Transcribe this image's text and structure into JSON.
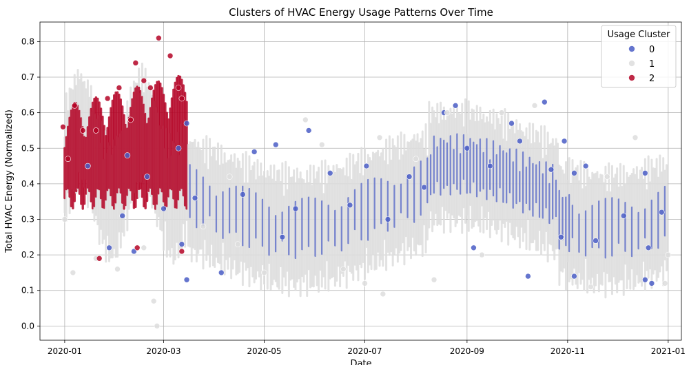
{
  "chart_data": {
    "type": "scatter",
    "title": "Clusters of HVAC Energy Usage Patterns Over Time",
    "xlabel": "Date",
    "ylabel": "Total HVAC Energy (Normalized)",
    "x_ticks": [
      "2020-01",
      "2020-03",
      "2020-05",
      "2020-07",
      "2020-09",
      "2020-11",
      "2021-01"
    ],
    "x_tick_dates": [
      "2020-01-01",
      "2020-03-01",
      "2020-05-01",
      "2020-07-01",
      "2020-09-01",
      "2020-11-01",
      "2021-01-01"
    ],
    "xlim": [
      "2019-12-17",
      "2021-01-09"
    ],
    "y_ticks": [
      "0.0",
      "0.1",
      "0.2",
      "0.3",
      "0.4",
      "0.5",
      "0.6",
      "0.7",
      "0.8"
    ],
    "ylim": [
      -0.04,
      0.855
    ],
    "grid": true,
    "legend": {
      "title": "Usage Cluster",
      "position": "top-right"
    },
    "series": [
      {
        "name": "0",
        "color": "#4a5dc6",
        "points": [
          [
            "2020-01-15",
            0.45
          ],
          [
            "2020-01-28",
            0.22
          ],
          [
            "2020-02-05",
            0.31
          ],
          [
            "2020-02-08",
            0.48
          ],
          [
            "2020-02-12",
            0.21
          ],
          [
            "2020-02-20",
            0.42
          ],
          [
            "2020-03-01",
            0.33
          ],
          [
            "2020-03-10",
            0.5
          ],
          [
            "2020-03-12",
            0.23
          ],
          [
            "2020-03-15",
            0.57
          ],
          [
            "2020-03-15",
            0.13
          ],
          [
            "2020-03-20",
            0.36
          ],
          [
            "2020-04-05",
            0.15
          ],
          [
            "2020-04-18",
            0.37
          ],
          [
            "2020-04-25",
            0.49
          ],
          [
            "2020-05-08",
            0.51
          ],
          [
            "2020-05-12",
            0.25
          ],
          [
            "2020-05-20",
            0.33
          ],
          [
            "2020-05-28",
            0.55
          ],
          [
            "2020-06-10",
            0.43
          ],
          [
            "2020-06-22",
            0.34
          ],
          [
            "2020-07-02",
            0.45
          ],
          [
            "2020-07-15",
            0.3
          ],
          [
            "2020-07-28",
            0.42
          ],
          [
            "2020-08-06",
            0.39
          ],
          [
            "2020-08-18",
            0.6
          ],
          [
            "2020-08-25",
            0.62
          ],
          [
            "2020-09-01",
            0.5
          ],
          [
            "2020-09-05",
            0.22
          ],
          [
            "2020-09-15",
            0.45
          ],
          [
            "2020-09-28",
            0.57
          ],
          [
            "2020-10-03",
            0.52
          ],
          [
            "2020-10-08",
            0.14
          ],
          [
            "2020-10-18",
            0.63
          ],
          [
            "2020-10-22",
            0.44
          ],
          [
            "2020-10-28",
            0.25
          ],
          [
            "2020-10-30",
            0.52
          ],
          [
            "2020-11-05",
            0.43
          ],
          [
            "2020-11-05",
            0.14
          ],
          [
            "2020-11-12",
            0.45
          ],
          [
            "2020-11-18",
            0.24
          ],
          [
            "2020-12-05",
            0.31
          ],
          [
            "2020-12-18",
            0.43
          ],
          [
            "2020-12-18",
            0.13
          ],
          [
            "2020-12-20",
            0.22
          ],
          [
            "2020-12-22",
            0.12
          ],
          [
            "2020-12-28",
            0.32
          ]
        ]
      },
      {
        "name": "1",
        "color": "#dddddd",
        "points": [
          [
            "2020-01-01",
            0.3
          ],
          [
            "2020-01-06",
            0.15
          ],
          [
            "2020-01-20",
            0.19
          ],
          [
            "2020-02-02",
            0.16
          ],
          [
            "2020-02-18",
            0.22
          ],
          [
            "2020-02-24",
            0.07
          ],
          [
            "2020-02-26",
            0.0
          ],
          [
            "2020-03-25",
            0.28
          ],
          [
            "2020-04-10",
            0.42
          ],
          [
            "2020-04-15",
            0.23
          ],
          [
            "2020-05-01",
            0.15
          ],
          [
            "2020-05-26",
            0.58
          ],
          [
            "2020-06-05",
            0.51
          ],
          [
            "2020-06-18",
            0.16
          ],
          [
            "2020-07-01",
            0.12
          ],
          [
            "2020-07-10",
            0.53
          ],
          [
            "2020-07-12",
            0.09
          ],
          [
            "2020-08-01",
            0.47
          ],
          [
            "2020-08-12",
            0.13
          ],
          [
            "2020-08-20",
            0.6
          ],
          [
            "2020-09-10",
            0.2
          ],
          [
            "2020-09-22",
            0.6
          ],
          [
            "2020-10-12",
            0.62
          ],
          [
            "2020-11-15",
            0.11
          ],
          [
            "2020-11-25",
            0.42
          ],
          [
            "2020-12-12",
            0.53
          ],
          [
            "2020-12-30",
            0.12
          ],
          [
            "2021-01-01",
            0.2
          ]
        ]
      },
      {
        "name": "2",
        "color": "#b40426",
        "points": [
          [
            "2019-12-31",
            0.56
          ],
          [
            "2020-01-03",
            0.47
          ],
          [
            "2020-01-07",
            0.62
          ],
          [
            "2020-01-12",
            0.55
          ],
          [
            "2020-01-20",
            0.55
          ],
          [
            "2020-01-22",
            0.19
          ],
          [
            "2020-01-27",
            0.64
          ],
          [
            "2020-02-03",
            0.67
          ],
          [
            "2020-02-10",
            0.58
          ],
          [
            "2020-02-13",
            0.74
          ],
          [
            "2020-02-14",
            0.22
          ],
          [
            "2020-02-18",
            0.69
          ],
          [
            "2020-02-22",
            0.67
          ],
          [
            "2020-02-27",
            0.81
          ],
          [
            "2020-03-05",
            0.76
          ],
          [
            "2020-03-10",
            0.67
          ],
          [
            "2020-03-12",
            0.64
          ],
          [
            "2020-03-12",
            0.21
          ]
        ]
      }
    ]
  }
}
